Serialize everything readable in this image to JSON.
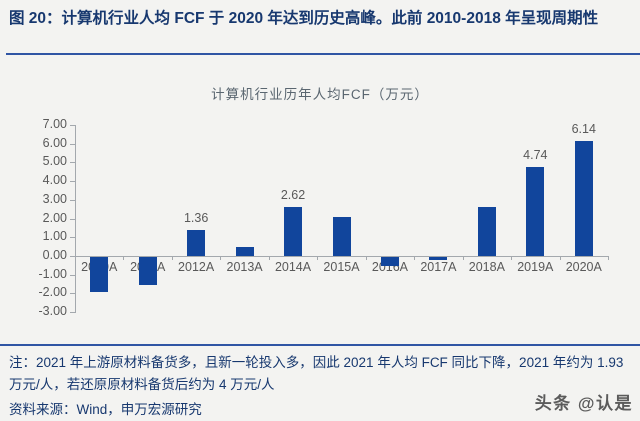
{
  "header": {
    "title": "图 20：计算机行业人均 FCF 于 2020 年达到历史高峰。此前 2010-2018 年呈现周期性"
  },
  "chart_data": {
    "type": "bar",
    "title": "计算机行业历年人均FCF（万元）",
    "categories": [
      "2010A",
      "2011A",
      "2012A",
      "2013A",
      "2014A",
      "2015A",
      "2016A",
      "2017A",
      "2018A",
      "2019A",
      "2020A"
    ],
    "values": [
      -1.9,
      -1.5,
      1.36,
      0.47,
      2.62,
      2.1,
      -0.5,
      -0.15,
      2.6,
      4.74,
      6.14
    ],
    "labels": [
      null,
      null,
      "1.36",
      null,
      "2.62",
      null,
      null,
      null,
      null,
      "4.74",
      "6.14"
    ],
    "y_ticks": [
      "7.00",
      "6.00",
      "5.00",
      "4.00",
      "3.00",
      "2.00",
      "1.00",
      "0.00",
      "-1.00",
      "-2.00",
      "-3.00"
    ],
    "ylim": [
      -3,
      7
    ],
    "xlabel": "",
    "ylabel": "",
    "grid": false,
    "legend": "none",
    "bar_color": "#11459c",
    "axis_color": "#a3a8ad",
    "text_color": "#595959"
  },
  "notes": {
    "note": "注：2021 年上游原材料备货多，且新一轮投入多，因此 2021 年人均 FCF 同比下降，2021 年约为 1.93 万元/人，若还原原材料备货后约为 4 万元/人",
    "source": "资料来源：Wind，申万宏源研究"
  },
  "watermark": "头条 @认是"
}
